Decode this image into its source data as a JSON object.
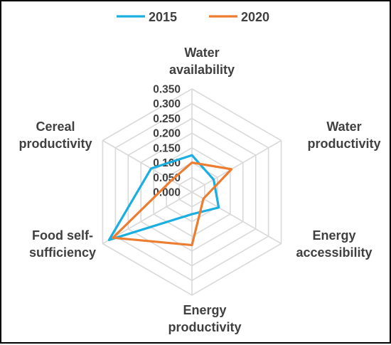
{
  "chart_data": {
    "type": "radar",
    "categories": [
      [
        "Water",
        "availability"
      ],
      [
        "Water",
        "productivity"
      ],
      [
        "Energy",
        "accessibility"
      ],
      [
        "Energy",
        "productivity"
      ],
      [
        "Food self-",
        "sufficiency"
      ],
      [
        "Cereal",
        "productivity"
      ]
    ],
    "series": [
      {
        "name": "2015",
        "color": "#1AAFE0",
        "values": [
          0.125,
          0.085,
          0.105,
          0.075,
          0.325,
          0.16
        ]
      },
      {
        "name": "2020",
        "color": "#ED7D31",
        "values": [
          0.1,
          0.155,
          0.045,
          0.18,
          0.31,
          0.08
        ]
      }
    ],
    "tick_labels": [
      "0.000",
      "0.050",
      "0.100",
      "0.150",
      "0.200",
      "0.250",
      "0.300",
      "0.350"
    ],
    "rmin": 0,
    "rmax": 0.35,
    "legend_position": "top",
    "grid": true,
    "grid_color": "#D9D9D9"
  }
}
